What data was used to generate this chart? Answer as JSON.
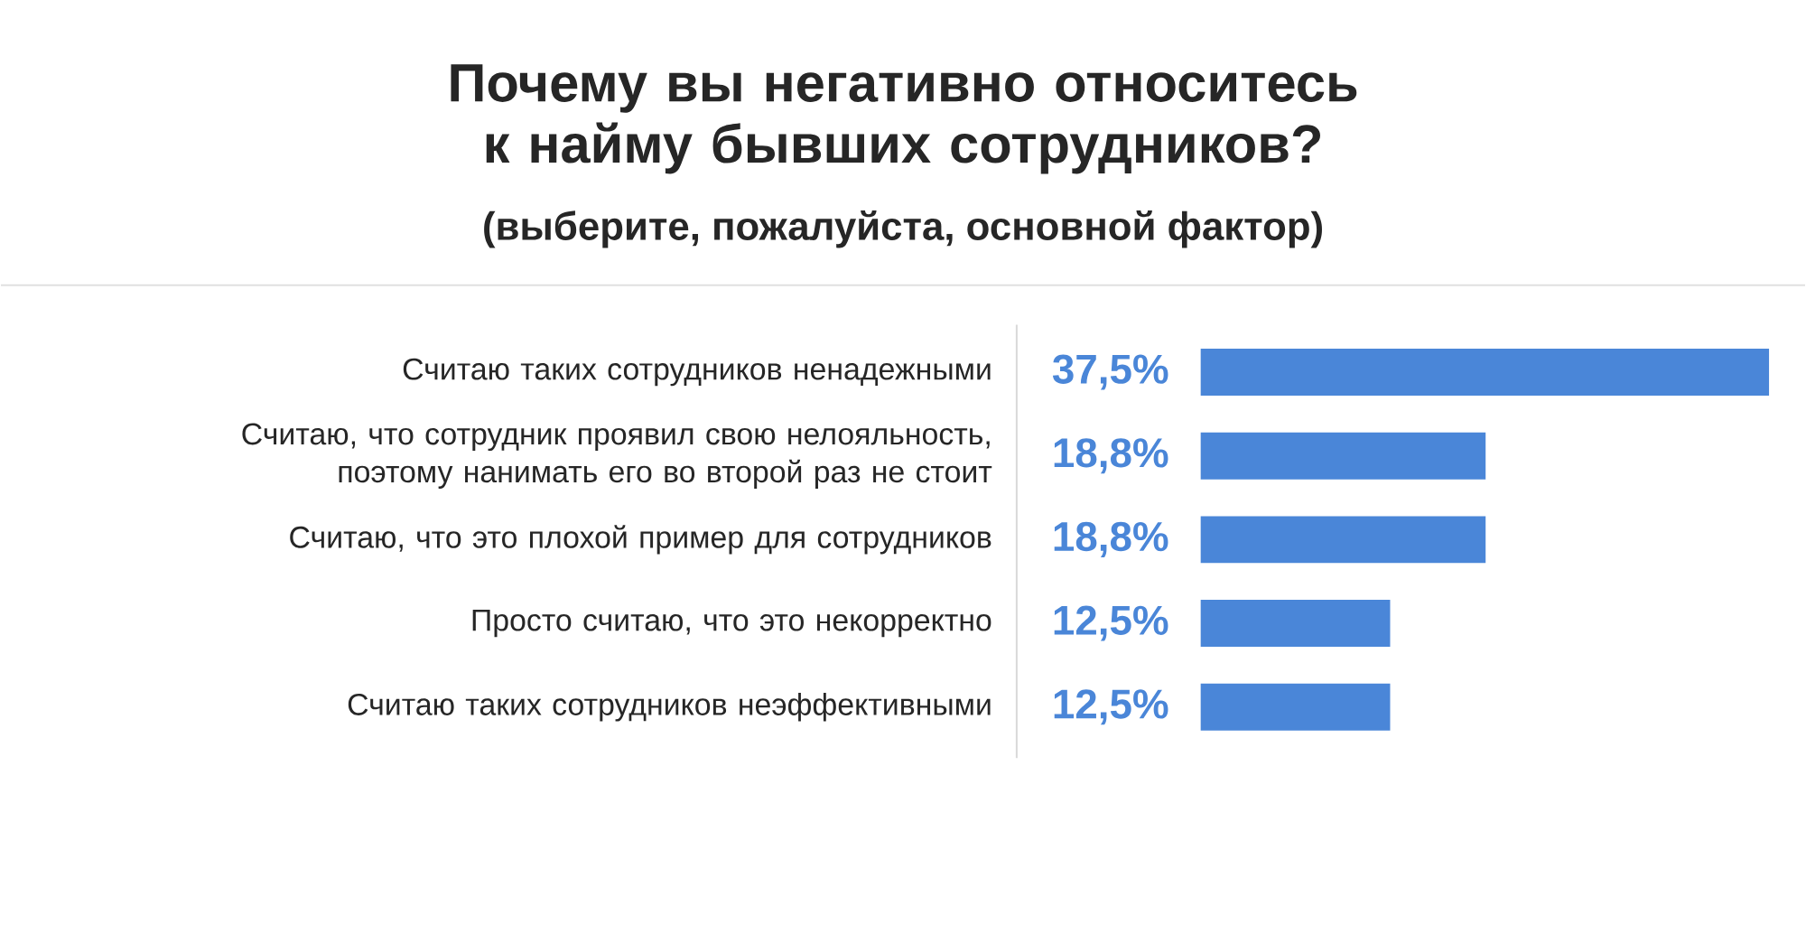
{
  "chart_data": {
    "type": "bar",
    "orientation": "horizontal",
    "title": "Почему вы негативно относитесь к найму бывших сотрудников?",
    "subtitle": "(выберите, пожалуйста, основной фактор)",
    "categories": [
      "Считаю таких сотрудников ненадежными",
      "Считаю, что сотрудник проявил свою нелояльность, поэтому нанимать его во второй раз не стоит",
      "Считаю, что это плохой пример для сотрудников",
      "Просто считаю, что это некорректно",
      "Считаю таких сотрудников неэффективными"
    ],
    "values": [
      37.5,
      18.8,
      18.8,
      12.5,
      12.5
    ],
    "value_labels": [
      "37,5%",
      "18,8%",
      "18,8%",
      "12,5%",
      "12,5%"
    ],
    "color": "#4a86d8"
  }
}
